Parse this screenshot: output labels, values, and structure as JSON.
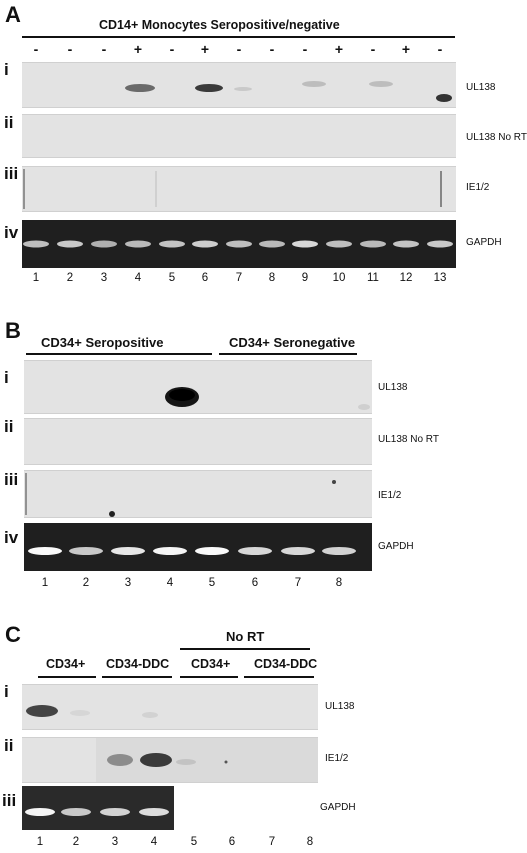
{
  "panelA": {
    "letter": "A",
    "header": "CD14+ Monocytes Seropositive/negative",
    "signs": [
      "-",
      "-",
      "-",
      "+",
      "-",
      "+",
      "-",
      "-",
      "-",
      "+",
      "-",
      "+",
      "-"
    ],
    "rows": [
      {
        "roman": "i",
        "label": "UL138"
      },
      {
        "roman": "ii",
        "label": "UL138 No RT"
      },
      {
        "roman": "iii",
        "label": "IE1/2"
      },
      {
        "roman": "iv",
        "label": "GAPDH"
      }
    ],
    "lanes": [
      "1",
      "2",
      "3",
      "4",
      "5",
      "6",
      "7",
      "8",
      "9",
      "10",
      "11",
      "12",
      "13"
    ]
  },
  "panelB": {
    "letter": "B",
    "group1": "CD34+ Seropositive",
    "group2": "CD34+ Seronegative",
    "rows": [
      {
        "roman": "i",
        "label": "UL138"
      },
      {
        "roman": "ii",
        "label": "UL138 No RT"
      },
      {
        "roman": "iii",
        "label": "IE1/2"
      },
      {
        "roman": "iv",
        "label": "GAPDH"
      }
    ],
    "lanes": [
      "1",
      "2",
      "3",
      "4",
      "5",
      "6",
      "7",
      "8"
    ]
  },
  "panelC": {
    "letter": "C",
    "top_group": "No RT",
    "groups": [
      "CD34+",
      "CD34-DDC",
      "CD34+",
      "CD34-DDC"
    ],
    "rows": [
      {
        "roman": "i",
        "label": "UL138"
      },
      {
        "roman": "ii",
        "label": "IE1/2"
      },
      {
        "roman": "iii",
        "label": "GAPDH"
      }
    ],
    "lanes": [
      "1",
      "2",
      "3",
      "4",
      "5",
      "6",
      "7",
      "8"
    ]
  }
}
